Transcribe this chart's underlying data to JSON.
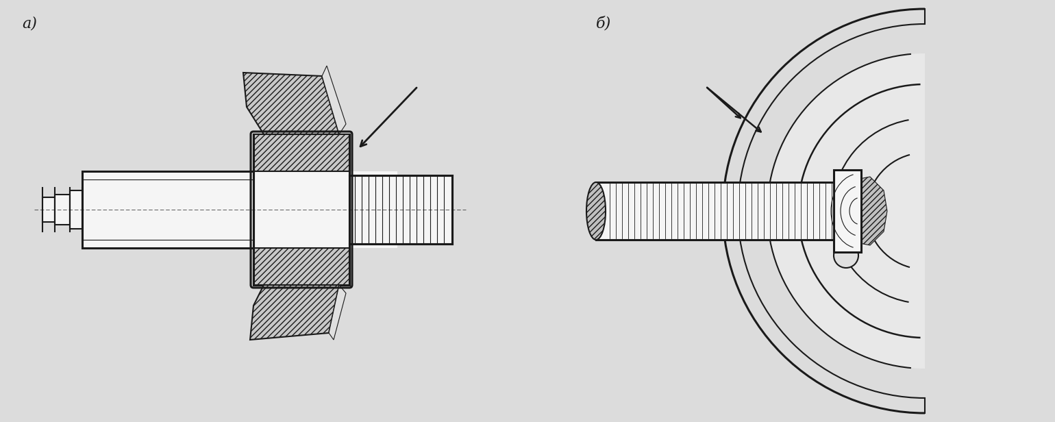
{
  "background_color": "#dcdcdc",
  "label_a": "a)",
  "label_b": "б)",
  "fig_width": 15.4,
  "fig_height": 6.16,
  "line_color": "#1a1a1a",
  "fill_white": "#f5f5f5",
  "fill_hatch": "#d0d0d0"
}
